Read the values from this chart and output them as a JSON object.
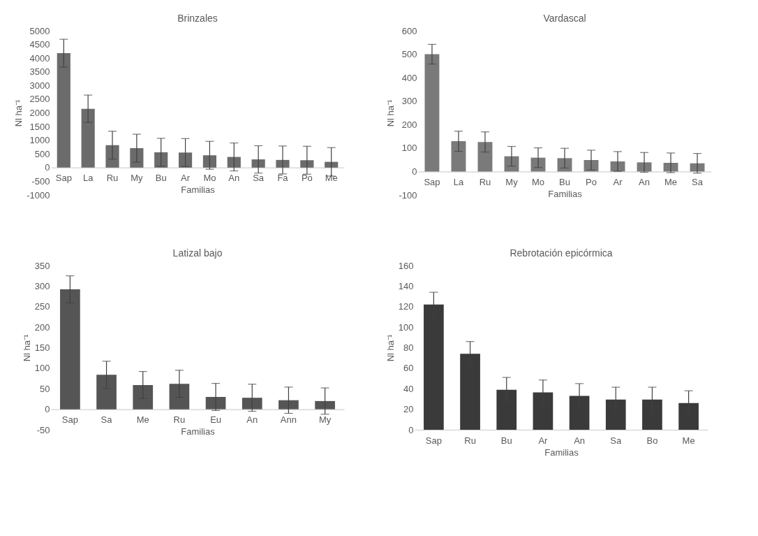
{
  "chart_data": [
    {
      "type": "bar",
      "title": "Brinzales",
      "xlabel": "Familias",
      "ylabel": "Nl ha⁻¹",
      "categories": [
        "Sap",
        "La",
        "Ru",
        "My",
        "Bu",
        "Ar",
        "Mo",
        "An",
        "Sa",
        "Fa",
        "Po",
        "Me"
      ],
      "values": [
        4180,
        2150,
        820,
        710,
        560,
        550,
        450,
        390,
        300,
        280,
        270,
        210
      ],
      "errors": [
        510,
        500,
        510,
        510,
        510,
        510,
        510,
        510,
        500,
        510,
        510,
        520
      ],
      "color": "#6b6b6b",
      "ylim": [
        -1000,
        5000
      ],
      "yticks": [
        -1000,
        -500,
        0,
        500,
        1000,
        1500,
        2000,
        2500,
        3000,
        3500,
        4000,
        4500,
        5000
      ],
      "grid": false
    },
    {
      "type": "bar",
      "title": "Vardascal",
      "xlabel": "Familias",
      "ylabel": "Nl ha⁻¹",
      "categories": [
        "Sap",
        "La",
        "Ru",
        "My",
        "Mo",
        "Bu",
        "Po",
        "Ar",
        "An",
        "Me",
        "Sa"
      ],
      "values": [
        500,
        129,
        126,
        65,
        59,
        57,
        49,
        43,
        39,
        37,
        35
      ],
      "errors": [
        42,
        43,
        43,
        42,
        42,
        42,
        42,
        42,
        42,
        42,
        42
      ],
      "color": "#7a7a7a",
      "ylim": [
        -100,
        600
      ],
      "yticks": [
        -100,
        0,
        100,
        200,
        300,
        400,
        500,
        600
      ],
      "grid": false
    },
    {
      "type": "bar",
      "title": "Latizal bajo",
      "xlabel": "Familias",
      "ylabel": "Nl ha⁻¹",
      "categories": [
        "Sap",
        "Sa",
        "Me",
        "Ru",
        "Eu",
        "An",
        "Ann",
        "My"
      ],
      "values": [
        292,
        84,
        59,
        62,
        30,
        28,
        22,
        20
      ],
      "errors": [
        33,
        33,
        33,
        33,
        33,
        33,
        32,
        32
      ],
      "color": "#555555",
      "ylim": [
        -50,
        350
      ],
      "yticks": [
        -50,
        0,
        50,
        100,
        150,
        200,
        250,
        300,
        350
      ],
      "grid": false
    },
    {
      "type": "bar",
      "title": "Rebrotación epicórmica",
      "xlabel": "Familias",
      "ylabel": "Nl ha⁻¹",
      "categories": [
        "Sap",
        "Ru",
        "Bu",
        "Ar",
        "An",
        "Sa",
        "Bo",
        "Me"
      ],
      "values": [
        122,
        74,
        39,
        36.5,
        33,
        29.5,
        29.5,
        26
      ],
      "errors": [
        12,
        12,
        12,
        12,
        12,
        12,
        12,
        12
      ],
      "color": "#3a3a3a",
      "ylim": [
        0,
        160
      ],
      "yticks": [
        0,
        20,
        40,
        60,
        80,
        100,
        120,
        140,
        160
      ],
      "grid": false
    }
  ]
}
